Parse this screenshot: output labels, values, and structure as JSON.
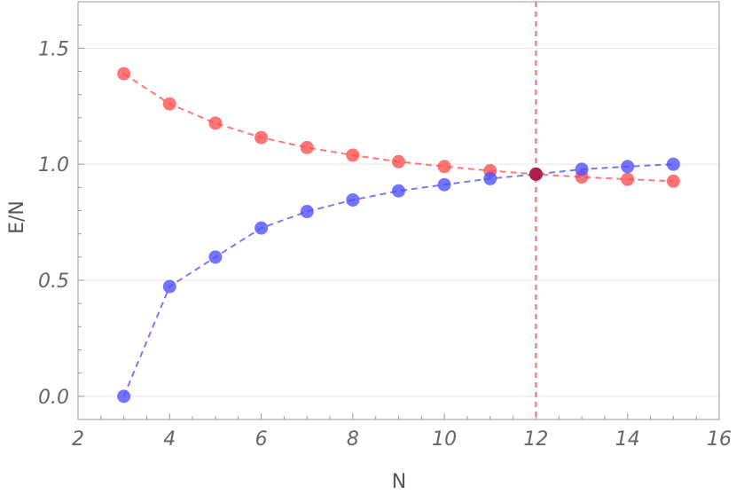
{
  "chart_data": {
    "type": "scatter",
    "title": "",
    "xlabel": "N",
    "ylabel": "E/N",
    "xlim": [
      2,
      16
    ],
    "ylim": [
      -0.1,
      1.7
    ],
    "xticks": [
      2,
      4,
      6,
      8,
      10,
      12,
      14,
      16
    ],
    "xtick_labels": [
      "2",
      "4",
      "6",
      "8",
      "10",
      "12",
      "14",
      "16"
    ],
    "yticks": [
      0.0,
      0.5,
      1.0,
      1.5
    ],
    "ytick_labels": [
      "0.0",
      "0.5",
      "1.0",
      "1.5"
    ],
    "grid": "horizontal",
    "series": [
      {
        "color": "#ff4d4d",
        "line_style": "dashed",
        "x": [
          3,
          4,
          5,
          6,
          7,
          8,
          9,
          10,
          11,
          12,
          13,
          14,
          15
        ],
        "y": [
          1.39,
          1.26,
          1.177,
          1.115,
          1.072,
          1.039,
          1.011,
          0.99,
          0.972,
          0.957,
          0.945,
          0.935,
          0.927
        ]
      },
      {
        "color": "#4d4dff",
        "line_style": "dashed",
        "x": [
          3,
          4,
          5,
          6,
          7,
          8,
          9,
          10,
          11,
          12,
          13,
          14,
          15
        ],
        "y": [
          0.0,
          0.473,
          0.6,
          0.725,
          0.796,
          0.846,
          0.885,
          0.912,
          0.938,
          0.957,
          0.978,
          0.99,
          1.0
        ]
      }
    ],
    "intersection": {
      "x": 12,
      "y": 0.957,
      "color": "#b0204a"
    },
    "vertical_line": {
      "x": 12,
      "color": "#ff8080",
      "line_style": "dashed"
    }
  }
}
